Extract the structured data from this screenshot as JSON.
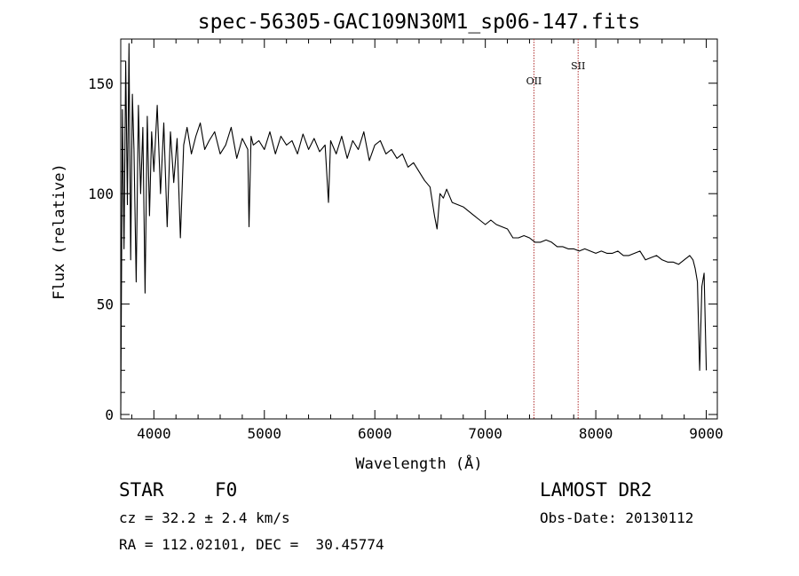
{
  "chart_data": {
    "type": "line",
    "title": "spec-56305-GAC109N30M1_sp06-147.fits",
    "xlabel": "Wavelength (Å)",
    "ylabel": "Flux (relative)",
    "xlim": [
      3700,
      9100
    ],
    "ylim": [
      -2,
      170
    ],
    "xticks": [
      4000,
      5000,
      6000,
      7000,
      8000,
      9000
    ],
    "yticks": [
      0,
      50,
      100,
      150
    ],
    "grid": false,
    "series": [
      {
        "x": [
          3700,
          3715,
          3730,
          3745,
          3760,
          3775,
          3790,
          3805,
          3820,
          3840,
          3860,
          3880,
          3900,
          3920,
          3940,
          3960,
          3980,
          4000,
          4030,
          4060,
          4090,
          4120,
          4150,
          4180,
          4210,
          4240,
          4270,
          4300,
          4340,
          4380,
          4420,
          4460,
          4500,
          4550,
          4600,
          4650,
          4700,
          4750,
          4800,
          4850,
          4861,
          4880,
          4900,
          4950,
          5000,
          5050,
          5100,
          5150,
          5200,
          5250,
          5300,
          5350,
          5400,
          5450,
          5500,
          5550,
          5580,
          5600,
          5650,
          5700,
          5750,
          5800,
          5850,
          5900,
          5950,
          6000,
          6050,
          6100,
          6150,
          6200,
          6250,
          6300,
          6350,
          6400,
          6450,
          6500,
          6540,
          6563,
          6590,
          6620,
          6650,
          6700,
          6750,
          6800,
          6850,
          6900,
          6950,
          7000,
          7050,
          7100,
          7150,
          7200,
          7250,
          7300,
          7350,
          7400,
          7450,
          7500,
          7550,
          7600,
          7650,
          7700,
          7750,
          7800,
          7850,
          7900,
          7950,
          8000,
          8050,
          8100,
          8150,
          8200,
          8250,
          8300,
          8350,
          8400,
          8450,
          8500,
          8550,
          8600,
          8650,
          8700,
          8750,
          8800,
          8850,
          8880,
          8900,
          8920,
          8940,
          8960,
          8980,
          9000
        ],
        "y": [
          0,
          138,
          75,
          160,
          95,
          168,
          70,
          145,
          120,
          60,
          140,
          100,
          130,
          55,
          135,
          90,
          128,
          110,
          140,
          100,
          132,
          85,
          128,
          105,
          125,
          80,
          122,
          130,
          118,
          126,
          132,
          120,
          124,
          128,
          118,
          122,
          130,
          116,
          125,
          120,
          85,
          126,
          122,
          124,
          120,
          128,
          118,
          126,
          122,
          124,
          118,
          127,
          120,
          125,
          119,
          122,
          96,
          124,
          118,
          126,
          116,
          124,
          120,
          128,
          115,
          122,
          124,
          118,
          120,
          116,
          118,
          112,
          114,
          110,
          106,
          103,
          90,
          84,
          100,
          98,
          102,
          96,
          95,
          94,
          92,
          90,
          88,
          86,
          88,
          86,
          85,
          84,
          80,
          80,
          81,
          80,
          78,
          78,
          79,
          78,
          76,
          76,
          75,
          75,
          74,
          75,
          74,
          73,
          74,
          73,
          73,
          74,
          72,
          72,
          73,
          74,
          70,
          71,
          72,
          70,
          69,
          69,
          68,
          70,
          72,
          70,
          66,
          60,
          20,
          58,
          64,
          20
        ],
        "values": [
          0,
          138,
          75,
          160,
          95,
          168,
          70,
          145,
          120,
          60,
          140,
          100,
          130,
          55,
          135,
          90,
          128,
          110,
          140,
          100,
          132,
          85,
          128,
          105,
          125,
          80,
          122,
          130,
          118,
          126,
          132,
          120,
          124,
          128,
          118,
          122,
          130,
          116,
          125,
          120,
          85,
          126,
          122,
          124,
          120,
          128,
          118,
          126,
          122,
          124,
          118,
          127,
          120,
          125,
          119,
          122,
          96,
          124,
          118,
          126,
          116,
          124,
          120,
          128,
          115,
          122,
          124,
          118,
          120,
          116,
          118,
          112,
          114,
          110,
          106,
          103,
          90,
          84,
          100,
          98,
          102,
          96,
          95,
          94,
          92,
          90,
          88,
          86,
          88,
          86,
          85,
          84,
          80,
          80,
          81,
          80,
          78,
          78,
          79,
          78,
          76,
          76,
          75,
          75,
          74,
          75,
          74,
          73,
          74,
          73,
          73,
          74,
          72,
          72,
          73,
          74,
          70,
          71,
          72,
          70,
          69,
          69,
          68,
          70,
          72,
          70,
          66,
          60,
          20,
          58,
          64,
          20
        ]
      }
    ],
    "lines": [
      {
        "label": "OII",
        "x": 7440
      },
      {
        "label": "SII",
        "x": 7840
      }
    ]
  },
  "info": {
    "object_class": "STAR",
    "subclass": "F0",
    "survey": "LAMOST DR2",
    "cz": "cz = 32.2 ± 2.4 km/s",
    "obs_date": "Obs-Date: 20130112",
    "coords": "RA = 112.02101, DEC =  30.45774"
  },
  "colors": {
    "spectrum": "#000000",
    "line_marker": "#b03030",
    "axes": "#000000"
  }
}
